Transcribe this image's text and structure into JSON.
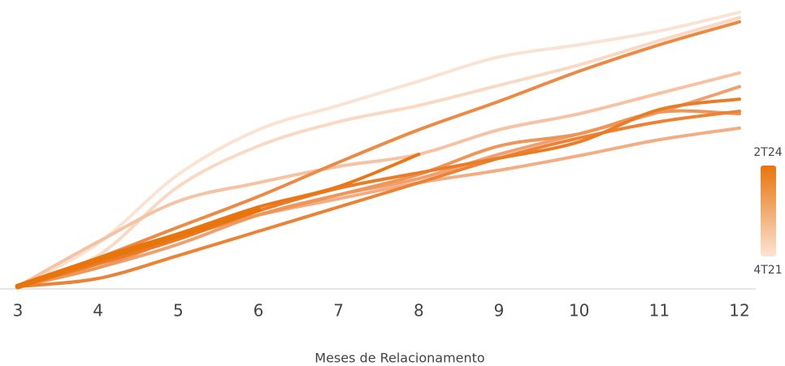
{
  "chart_data": {
    "type": "line",
    "x_label": "Meses de Relacionamento",
    "x": [
      3,
      4,
      5,
      6,
      7,
      8,
      9,
      10,
      11,
      12
    ],
    "xlim": [
      2.8,
      12.2
    ],
    "xticks": [
      3,
      4,
      5,
      6,
      7,
      8,
      9,
      10,
      11,
      12
    ],
    "ylim": [
      0,
      100
    ],
    "colorbar": {
      "low_label": "4T21",
      "high_label": "2T24",
      "low_color": "#fbe3d3",
      "high_color": "#e8740c"
    },
    "series": [
      {
        "color": "#fbe3d3",
        "values": [
          0,
          15.6,
          40.6,
          56.8,
          65.6,
          74.4,
          83.2,
          87.6,
          92.6,
          99.4
        ]
      },
      {
        "color": "#f9d9c3",
        "values": [
          0,
          11.2,
          36.2,
          50.9,
          59.7,
          65.6,
          72.9,
          80.3,
          89.1,
          97.4
        ]
      },
      {
        "color": "#f5c3a3",
        "values": [
          0,
          16.2,
          30.9,
          37.6,
          43.5,
          47.9,
          56.8,
          62.6,
          70,
          77.4
        ]
      },
      {
        "color": "#f2ad85",
        "values": [
          0,
          8.2,
          18.5,
          25.9,
          31.8,
          37.6,
          42.1,
          47.4,
          53.2,
          57.4
        ]
      },
      {
        "color": "#f0a070",
        "values": [
          0,
          6.8,
          15.3,
          25.9,
          33.2,
          39.1,
          47.9,
          55.3,
          63.2,
          72.4
        ]
      },
      {
        "color": "#ee9558",
        "values": [
          0,
          6.8,
          17.6,
          25.9,
          33.2,
          40.6,
          50.9,
          55.3,
          63.2,
          62.6
        ]
      },
      {
        "color": "#ec8a45",
        "values": [
          0,
          10.3,
          21.5,
          32.6,
          45,
          56.8,
          67.1,
          78,
          87.6,
          95.9
        ]
      },
      {
        "color": "#eb8236",
        "values": [
          0,
          2.9,
          11.2,
          20,
          28.8,
          37.6,
          46.5,
          53.8,
          59.7,
          63.5
        ]
      },
      {
        "color": "#ea7c28",
        "values": [
          0,
          8.2,
          17.1,
          27.4,
          35.6,
          41.2,
          46.5,
          52.4,
          64.1,
          67.9
        ]
      },
      {
        "color": "#e97719",
        "values": [
          0,
          10.3,
          19.1,
          28.8,
          36.2,
          47.9,
          null,
          null,
          null,
          null
        ]
      },
      {
        "color": "#e8740c",
        "line_width": 7,
        "values": [
          0,
          9.7,
          18.5,
          27.9,
          null,
          null,
          null,
          null,
          null,
          null
        ]
      }
    ]
  }
}
